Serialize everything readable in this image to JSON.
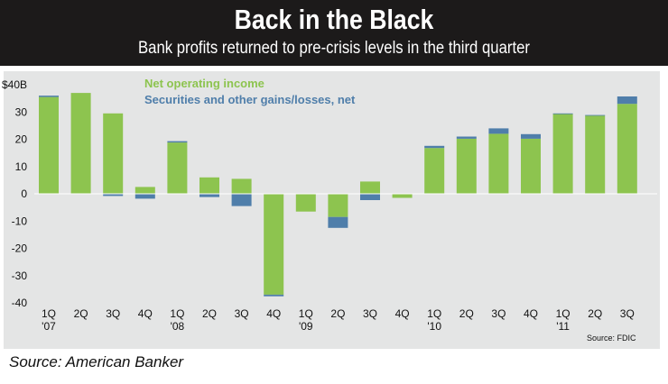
{
  "header": {
    "title": "Back in the Black",
    "subtitle": "Bank profits returned to pre-crisis levels in the third quarter"
  },
  "footer": {
    "source": "Source: American Banker"
  },
  "colors": {
    "net_operating_income": "#8dc44f",
    "securities": "#4f7eaa",
    "panel": "#e4e5e5",
    "header": "#1c1a1a"
  },
  "chart_data": {
    "type": "bar",
    "stacked": true,
    "title": "Back in the Black",
    "subtitle": "Bank profits returned to pre-crisis levels in the third quarter",
    "source_note": "Source: FDIC",
    "y_tick_labels": [
      "$40B",
      "30",
      "20",
      "10",
      "0",
      "-10",
      "-20",
      "-30",
      "-40"
    ],
    "ylim": [
      -40,
      40
    ],
    "grid": false,
    "legend_position": "top-center",
    "categories": [
      {
        "q": "1Q",
        "y": "'07"
      },
      {
        "q": "2Q",
        "y": ""
      },
      {
        "q": "3Q",
        "y": ""
      },
      {
        "q": "4Q",
        "y": ""
      },
      {
        "q": "1Q",
        "y": "'08"
      },
      {
        "q": "2Q",
        "y": ""
      },
      {
        "q": "3Q",
        "y": ""
      },
      {
        "q": "4Q",
        "y": ""
      },
      {
        "q": "1Q",
        "y": "'09"
      },
      {
        "q": "2Q",
        "y": ""
      },
      {
        "q": "3Q",
        "y": ""
      },
      {
        "q": "4Q",
        "y": ""
      },
      {
        "q": "1Q",
        "y": "'10"
      },
      {
        "q": "2Q",
        "y": ""
      },
      {
        "q": "3Q",
        "y": ""
      },
      {
        "q": "4Q",
        "y": ""
      },
      {
        "q": "1Q",
        "y": "'11"
      },
      {
        "q": "2Q",
        "y": ""
      },
      {
        "q": "3Q",
        "y": ""
      }
    ],
    "series": [
      {
        "name": "Net operating income",
        "color": "#8dc44f",
        "values": [
          35.5,
          37,
          29.5,
          2.5,
          18.8,
          6,
          5.5,
          -37,
          -6.5,
          -8.5,
          4.5,
          -1.5,
          16.8,
          20.2,
          22,
          20.2,
          29.3,
          28.7,
          33
        ]
      },
      {
        "name": "Securities and other gains/losses, net",
        "color": "#4f7eaa",
        "values": [
          0.5,
          0,
          -0.8,
          -1.8,
          0.5,
          -1.2,
          -4.5,
          -0.6,
          0,
          -4,
          -2.3,
          0,
          0.8,
          0.8,
          2,
          1.7,
          0.2,
          0.2,
          2.7
        ]
      }
    ]
  }
}
